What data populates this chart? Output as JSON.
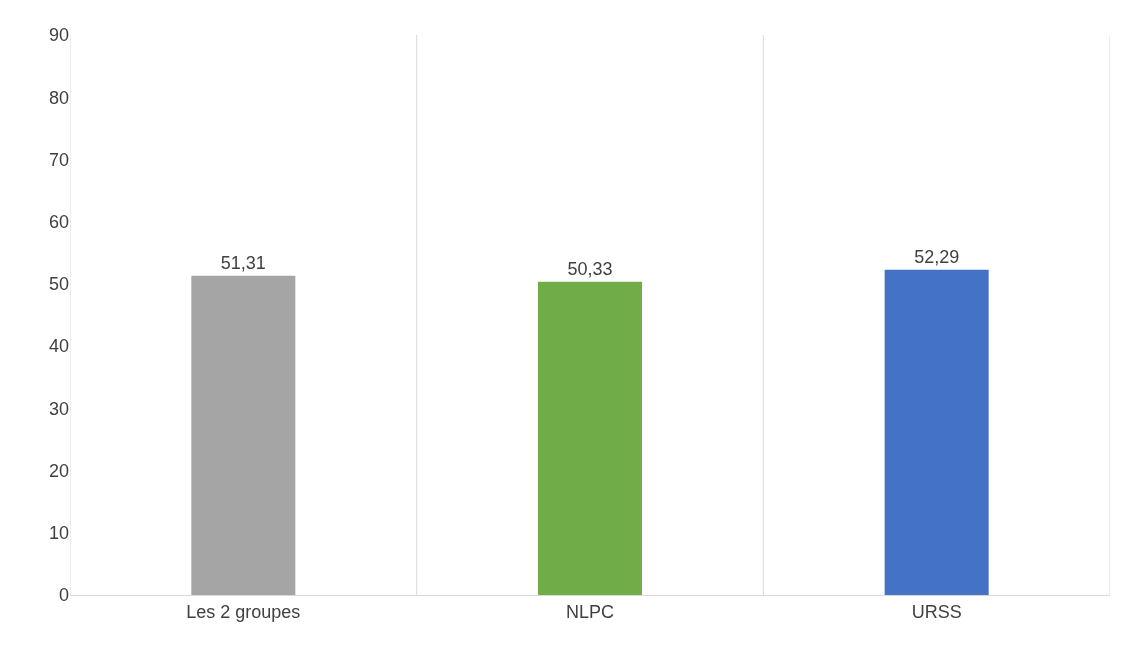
{
  "chart_data": {
    "type": "bar",
    "categories": [
      "Les 2 groupes",
      "NLPC",
      "URSS"
    ],
    "values": [
      51.31,
      50.33,
      52.29
    ],
    "colors": [
      "#a5a5a5",
      "#70ad47",
      "#4472c4"
    ],
    "value_labels": [
      "51,31",
      "50,33",
      "52,29"
    ],
    "ylim": [
      0,
      90
    ],
    "yticks": [
      0,
      10,
      20,
      30,
      40,
      50,
      60,
      70,
      80,
      90
    ],
    "grid": "x"
  }
}
